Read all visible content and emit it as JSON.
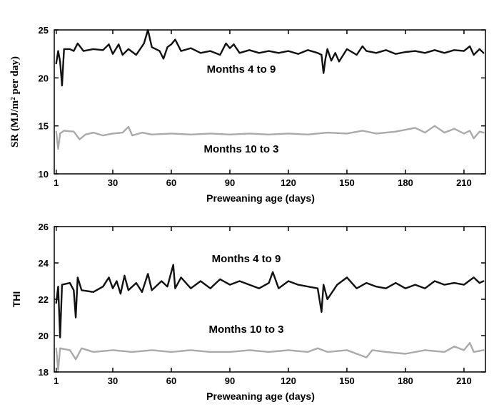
{
  "chart_data": [
    {
      "type": "line",
      "ylabel": "SR (MJ/m² per day)",
      "xlabel": "Preweaning age (days)",
      "xlim": [
        0,
        221
      ],
      "ylim": [
        10,
        25
      ],
      "xticks": [
        1,
        30,
        60,
        90,
        120,
        150,
        180,
        210
      ],
      "yticks": [
        10,
        15,
        20,
        25
      ],
      "grid": false,
      "annotations": [
        {
          "text": "Months 4 to 9",
          "x": 90,
          "y": 20.8
        },
        {
          "text": "Months 10 to 3",
          "x": 95,
          "y": 12.5
        }
      ],
      "series": [
        {
          "name": "Months 4 to 9",
          "color": "#111111",
          "keypoints": [
            [
              1,
              21.5
            ],
            [
              2,
              22.8
            ],
            [
              3,
              21.7
            ],
            [
              4,
              19.2
            ],
            [
              5,
              23.0
            ],
            [
              8,
              23.0
            ],
            [
              10,
              22.8
            ],
            [
              12,
              23.6
            ],
            [
              15,
              22.8
            ],
            [
              20,
              23.0
            ],
            [
              25,
              22.9
            ],
            [
              28,
              23.5
            ],
            [
              30,
              22.5
            ],
            [
              33,
              23.5
            ],
            [
              35,
              22.4
            ],
            [
              38,
              23.0
            ],
            [
              42,
              22.4
            ],
            [
              46,
              23.6
            ],
            [
              48,
              25.0
            ],
            [
              50,
              23.2
            ],
            [
              54,
              22.8
            ],
            [
              56,
              22.0
            ],
            [
              58,
              23.2
            ],
            [
              60,
              23.5
            ],
            [
              62,
              24.0
            ],
            [
              65,
              22.8
            ],
            [
              70,
              23.1
            ],
            [
              75,
              22.6
            ],
            [
              80,
              22.8
            ],
            [
              85,
              22.4
            ],
            [
              88,
              23.6
            ],
            [
              90,
              23.1
            ],
            [
              92,
              23.5
            ],
            [
              95,
              22.6
            ],
            [
              100,
              22.9
            ],
            [
              105,
              22.6
            ],
            [
              110,
              22.8
            ],
            [
              115,
              22.6
            ],
            [
              120,
              22.8
            ],
            [
              125,
              22.5
            ],
            [
              130,
              22.9
            ],
            [
              135,
              22.6
            ],
            [
              137,
              22.4
            ],
            [
              138,
              20.5
            ],
            [
              139,
              22.0
            ],
            [
              140,
              23.0
            ],
            [
              142,
              21.8
            ],
            [
              144,
              22.6
            ],
            [
              146,
              21.7
            ],
            [
              150,
              23.0
            ],
            [
              155,
              22.4
            ],
            [
              158,
              23.3
            ],
            [
              160,
              22.8
            ],
            [
              165,
              22.6
            ],
            [
              170,
              22.9
            ],
            [
              175,
              22.5
            ],
            [
              180,
              22.7
            ],
            [
              185,
              22.8
            ],
            [
              190,
              22.6
            ],
            [
              195,
              22.9
            ],
            [
              200,
              22.6
            ],
            [
              205,
              22.9
            ],
            [
              210,
              22.8
            ],
            [
              213,
              23.3
            ],
            [
              215,
              22.4
            ],
            [
              218,
              23.0
            ],
            [
              220,
              22.6
            ]
          ]
        },
        {
          "name": "Months 10 to 3",
          "color": "#aaaaaa",
          "keypoints": [
            [
              1,
              14.4
            ],
            [
              2,
              12.6
            ],
            [
              3,
              14.2
            ],
            [
              5,
              14.5
            ],
            [
              10,
              14.4
            ],
            [
              13,
              13.6
            ],
            [
              16,
              14.1
            ],
            [
              20,
              14.3
            ],
            [
              25,
              14.0
            ],
            [
              30,
              14.2
            ],
            [
              35,
              14.3
            ],
            [
              38,
              14.9
            ],
            [
              40,
              14.0
            ],
            [
              45,
              14.3
            ],
            [
              50,
              14.1
            ],
            [
              60,
              14.2
            ],
            [
              70,
              14.1
            ],
            [
              80,
              14.2
            ],
            [
              90,
              14.1
            ],
            [
              100,
              14.2
            ],
            [
              110,
              14.1
            ],
            [
              120,
              14.2
            ],
            [
              130,
              14.1
            ],
            [
              140,
              14.3
            ],
            [
              150,
              14.2
            ],
            [
              158,
              14.5
            ],
            [
              165,
              14.2
            ],
            [
              175,
              14.4
            ],
            [
              185,
              14.8
            ],
            [
              190,
              14.3
            ],
            [
              195,
              15.0
            ],
            [
              200,
              14.3
            ],
            [
              205,
              14.7
            ],
            [
              210,
              14.2
            ],
            [
              213,
              14.5
            ],
            [
              215,
              13.7
            ],
            [
              218,
              14.4
            ],
            [
              220,
              14.3
            ]
          ]
        }
      ]
    },
    {
      "type": "line",
      "ylabel": "THI",
      "xlabel": "Preweaning age (days)",
      "xlim": [
        0,
        221
      ],
      "ylim": [
        18,
        26
      ],
      "xticks": [
        1,
        30,
        60,
        90,
        120,
        150,
        180,
        210
      ],
      "yticks": [
        18,
        20,
        22,
        24,
        26
      ],
      "grid": false,
      "annotations": [
        {
          "text": "Months 4 to 9",
          "x": 105,
          "y": 24.3
        },
        {
          "text": "Months 10 to 3",
          "x": 105,
          "y": 20.3
        }
      ],
      "series": [
        {
          "name": "Months 4 to 9",
          "color": "#111111",
          "keypoints": [
            [
              1,
              21.8
            ],
            [
              2,
              22.7
            ],
            [
              3,
              19.9
            ],
            [
              4,
              22.8
            ],
            [
              8,
              22.9
            ],
            [
              10,
              22.5
            ],
            [
              11,
              21.0
            ],
            [
              12,
              23.2
            ],
            [
              14,
              22.5
            ],
            [
              20,
              22.4
            ],
            [
              25,
              22.7
            ],
            [
              28,
              23.2
            ],
            [
              30,
              22.6
            ],
            [
              32,
              23.0
            ],
            [
              34,
              22.3
            ],
            [
              36,
              23.3
            ],
            [
              38,
              22.5
            ],
            [
              42,
              22.9
            ],
            [
              45,
              22.4
            ],
            [
              48,
              23.4
            ],
            [
              50,
              22.5
            ],
            [
              55,
              23.0
            ],
            [
              58,
              22.7
            ],
            [
              61,
              23.9
            ],
            [
              62,
              22.6
            ],
            [
              65,
              23.2
            ],
            [
              70,
              22.6
            ],
            [
              75,
              23.0
            ],
            [
              80,
              22.6
            ],
            [
              85,
              23.1
            ],
            [
              90,
              22.8
            ],
            [
              95,
              23.0
            ],
            [
              100,
              22.8
            ],
            [
              105,
              22.6
            ],
            [
              110,
              22.9
            ],
            [
              112,
              23.5
            ],
            [
              115,
              22.6
            ],
            [
              120,
              23.0
            ],
            [
              125,
              22.8
            ],
            [
              130,
              22.7
            ],
            [
              135,
              22.6
            ],
            [
              137,
              21.3
            ],
            [
              138,
              22.8
            ],
            [
              140,
              22.0
            ],
            [
              145,
              22.8
            ],
            [
              150,
              23.2
            ],
            [
              155,
              22.6
            ],
            [
              160,
              22.9
            ],
            [
              165,
              22.7
            ],
            [
              170,
              22.6
            ],
            [
              175,
              22.9
            ],
            [
              180,
              22.6
            ],
            [
              185,
              22.8
            ],
            [
              190,
              22.6
            ],
            [
              195,
              23.0
            ],
            [
              200,
              22.8
            ],
            [
              205,
              22.9
            ],
            [
              210,
              22.8
            ],
            [
              215,
              23.2
            ],
            [
              218,
              22.9
            ],
            [
              220,
              23.0
            ]
          ]
        },
        {
          "name": "Months 10 to 3",
          "color": "#aaaaaa",
          "keypoints": [
            [
              1,
              19.3
            ],
            [
              2,
              18.1
            ],
            [
              3,
              19.3
            ],
            [
              8,
              19.2
            ],
            [
              11,
              18.7
            ],
            [
              14,
              19.3
            ],
            [
              20,
              19.1
            ],
            [
              30,
              19.2
            ],
            [
              40,
              19.1
            ],
            [
              50,
              19.2
            ],
            [
              60,
              19.1
            ],
            [
              70,
              19.2
            ],
            [
              80,
              19.1
            ],
            [
              90,
              19.1
            ],
            [
              100,
              19.2
            ],
            [
              110,
              19.1
            ],
            [
              120,
              19.2
            ],
            [
              130,
              19.1
            ],
            [
              135,
              19.3
            ],
            [
              140,
              19.1
            ],
            [
              150,
              19.2
            ],
            [
              155,
              19.0
            ],
            [
              160,
              18.8
            ],
            [
              163,
              19.2
            ],
            [
              170,
              19.1
            ],
            [
              180,
              19.0
            ],
            [
              190,
              19.2
            ],
            [
              200,
              19.1
            ],
            [
              205,
              19.4
            ],
            [
              210,
              19.2
            ],
            [
              213,
              19.6
            ],
            [
              215,
              19.1
            ],
            [
              220,
              19.2
            ]
          ]
        }
      ]
    }
  ]
}
